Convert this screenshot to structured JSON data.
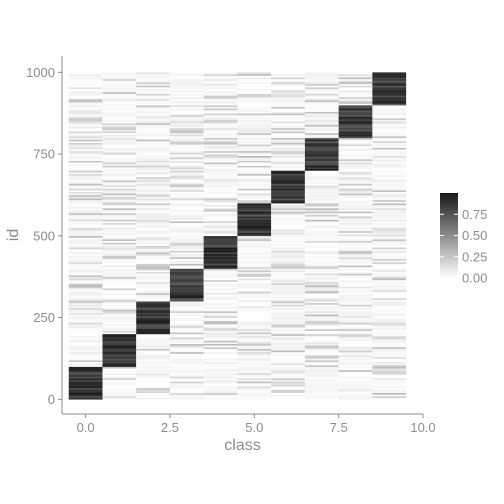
{
  "chart_data": {
    "type": "heatmap",
    "title": "",
    "xlabel": "class",
    "ylabel": "id",
    "x_categories": [
      0,
      1,
      2,
      3,
      4,
      5,
      6,
      7,
      8,
      9
    ],
    "xlim": [
      -0.5,
      9.5
    ],
    "ylim": [
      0,
      1000
    ],
    "x_ticks": [
      0.0,
      2.5,
      5.0,
      7.5,
      10.0
    ],
    "x_tick_labels": [
      "0.0",
      "2.5",
      "5.0",
      "7.5",
      "10.0"
    ],
    "y_ticks": [
      0,
      250,
      500,
      750,
      1000
    ],
    "y_tick_labels": [
      "0",
      "250",
      "500",
      "750",
      "1000"
    ],
    "diagonal_blocks": [
      {
        "class": 0,
        "id_start": 0,
        "id_end": 100
      },
      {
        "class": 1,
        "id_start": 100,
        "id_end": 200
      },
      {
        "class": 2,
        "id_start": 200,
        "id_end": 300
      },
      {
        "class": 3,
        "id_start": 300,
        "id_end": 400
      },
      {
        "class": 4,
        "id_start": 400,
        "id_end": 500
      },
      {
        "class": 5,
        "id_start": 500,
        "id_end": 600
      },
      {
        "class": 6,
        "id_start": 600,
        "id_end": 700
      },
      {
        "class": 7,
        "id_start": 700,
        "id_end": 800
      },
      {
        "class": 8,
        "id_start": 800,
        "id_end": 900
      },
      {
        "class": 9,
        "id_start": 900,
        "id_end": 1000
      }
    ],
    "block_value_range": [
      0.7,
      1.0
    ],
    "background_value_range": [
      0.0,
      0.3
    ],
    "legend": {
      "position": "right",
      "range": [
        0,
        1
      ],
      "ticks": [
        0.0,
        0.25,
        0.5,
        0.75
      ],
      "tick_labels": [
        "0.00",
        "0.25",
        "0.50",
        "0.75"
      ],
      "color_low": "#ffffff",
      "color_high": "#1a1a1a"
    },
    "grid": false
  }
}
